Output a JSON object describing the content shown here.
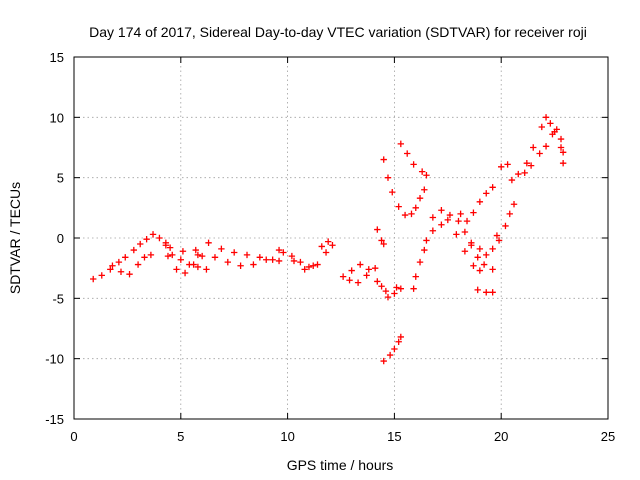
{
  "chart_data": {
    "type": "scatter",
    "title": "Day 174 of 2017, Sidereal Day-to-day VTEC variation (SDTVAR) for receiver roji",
    "xlabel": "GPS time / hours",
    "ylabel": "SDTVAR / TECUs",
    "xlim": [
      0,
      25
    ],
    "ylim": [
      -15,
      15
    ],
    "xticks": [
      "0",
      "5",
      "10",
      "15",
      "20",
      "25"
    ],
    "yticks": [
      "-15",
      "-10",
      "-5",
      "0",
      "5",
      "10",
      "15"
    ],
    "grid": true,
    "marker": "plus",
    "color": "#ff0000",
    "segments": [
      {
        "points": [
          [
            0.9,
            -3.4
          ],
          [
            1.3,
            -3.1
          ],
          [
            1.7,
            -2.6
          ],
          [
            2.1,
            -2.0
          ],
          [
            2.4,
            -1.6
          ],
          [
            2.8,
            -1.0
          ],
          [
            3.1,
            -0.5
          ],
          [
            3.4,
            -0.1
          ],
          [
            3.7,
            0.3
          ],
          [
            4.0,
            0.0
          ],
          [
            4.3,
            -0.6
          ]
        ]
      },
      {
        "points": [
          [
            1.8,
            -2.3
          ],
          [
            2.2,
            -2.8
          ],
          [
            2.6,
            -3.0
          ],
          [
            3.0,
            -2.2
          ],
          [
            3.3,
            -1.6
          ],
          [
            3.6,
            -1.4
          ]
        ]
      },
      {
        "points": [
          [
            4.3,
            -0.4
          ],
          [
            4.6,
            -1.4
          ],
          [
            5.0,
            -1.8
          ],
          [
            5.4,
            -2.2
          ],
          [
            5.8,
            -2.4
          ],
          [
            6.2,
            -2.6
          ]
        ]
      },
      {
        "points": [
          [
            4.4,
            -1.5
          ],
          [
            4.8,
            -2.6
          ],
          [
            5.2,
            -2.9
          ],
          [
            5.6,
            -2.2
          ],
          [
            5.8,
            -1.4
          ]
        ]
      },
      {
        "points": [
          [
            4.5,
            -0.8
          ],
          [
            5.1,
            -1.1
          ],
          [
            5.7,
            -1.0
          ],
          [
            6.3,
            -0.4
          ],
          [
            6.9,
            -0.9
          ],
          [
            7.5,
            -1.2
          ],
          [
            8.1,
            -1.4
          ],
          [
            8.7,
            -1.6
          ],
          [
            9.3,
            -1.8
          ],
          [
            9.6,
            -1.9
          ]
        ]
      },
      {
        "points": [
          [
            6.0,
            -1.5
          ],
          [
            6.6,
            -1.6
          ],
          [
            7.2,
            -2.0
          ],
          [
            7.8,
            -2.3
          ],
          [
            8.4,
            -2.2
          ],
          [
            9.0,
            -1.8
          ],
          [
            9.6,
            -1.0
          ]
        ]
      },
      {
        "points": [
          [
            9.8,
            -1.2
          ],
          [
            10.2,
            -1.5
          ],
          [
            10.6,
            -2.0
          ],
          [
            11.0,
            -2.4
          ],
          [
            11.4,
            -2.2
          ],
          [
            11.8,
            -1.2
          ],
          [
            12.1,
            -0.6
          ]
        ]
      },
      {
        "points": [
          [
            10.3,
            -1.9
          ],
          [
            10.8,
            -2.6
          ],
          [
            11.2,
            -2.3
          ],
          [
            11.6,
            -0.7
          ],
          [
            11.9,
            -0.3
          ]
        ]
      },
      {
        "points": [
          [
            12.6,
            -3.2
          ],
          [
            13.0,
            -2.7
          ],
          [
            13.4,
            -2.2
          ],
          [
            13.8,
            -2.6
          ],
          [
            14.2,
            -3.6
          ],
          [
            14.6,
            -4.4
          ],
          [
            15.0,
            -4.6
          ],
          [
            15.3,
            -4.2
          ]
        ]
      },
      {
        "points": [
          [
            12.9,
            -3.5
          ],
          [
            13.3,
            -3.7
          ],
          [
            13.7,
            -3.1
          ],
          [
            14.1,
            -2.5
          ],
          [
            14.4,
            -4.0
          ],
          [
            14.7,
            -4.9
          ],
          [
            15.1,
            -4.1
          ]
        ]
      },
      {
        "points": [
          [
            14.2,
            0.7
          ],
          [
            14.4,
            -0.2
          ],
          [
            14.5,
            -0.5
          ]
        ]
      },
      {
        "points": [
          [
            14.5,
            6.5
          ],
          [
            14.7,
            5.0
          ],
          [
            14.9,
            3.8
          ],
          [
            15.2,
            2.6
          ],
          [
            15.5,
            1.9
          ],
          [
            15.8,
            2.0
          ],
          [
            16.0,
            2.5
          ],
          [
            16.2,
            3.3
          ],
          [
            16.4,
            4.0
          ]
        ]
      },
      {
        "points": [
          [
            15.3,
            7.8
          ],
          [
            15.6,
            7.0
          ],
          [
            15.9,
            6.1
          ],
          [
            16.3,
            5.5
          ],
          [
            16.5,
            5.2
          ]
        ]
      },
      {
        "points": [
          [
            14.5,
            -10.2
          ],
          [
            14.8,
            -9.7
          ],
          [
            15.0,
            -9.2
          ],
          [
            15.2,
            -8.6
          ],
          [
            15.3,
            -8.2
          ]
        ]
      },
      {
        "points": [
          [
            15.9,
            -4.2
          ],
          [
            16.0,
            -3.2
          ],
          [
            16.2,
            -2.0
          ],
          [
            16.4,
            -1.0
          ]
        ]
      },
      {
        "points": [
          [
            16.5,
            -0.2
          ],
          [
            16.8,
            0.6
          ],
          [
            17.2,
            1.1
          ],
          [
            17.6,
            1.9
          ],
          [
            18.0,
            1.4
          ],
          [
            18.3,
            0.5
          ],
          [
            18.6,
            -0.6
          ],
          [
            18.9,
            -1.6
          ],
          [
            19.2,
            -2.2
          ],
          [
            19.6,
            -2.6
          ]
        ]
      },
      {
        "points": [
          [
            16.8,
            1.7
          ],
          [
            17.2,
            2.3
          ],
          [
            17.5,
            1.5
          ],
          [
            17.9,
            0.3
          ],
          [
            18.3,
            -1.1
          ],
          [
            18.7,
            -2.3
          ],
          [
            19.0,
            -2.7
          ]
        ]
      },
      {
        "points": [
          [
            18.1,
            2.0
          ],
          [
            18.4,
            1.4
          ],
          [
            18.7,
            2.1
          ],
          [
            19.0,
            3.0
          ],
          [
            19.3,
            3.7
          ],
          [
            19.6,
            4.2
          ]
        ]
      },
      {
        "points": [
          [
            18.6,
            -0.4
          ],
          [
            19.0,
            -0.9
          ],
          [
            19.3,
            -1.4
          ],
          [
            19.6,
            -0.9
          ],
          [
            19.8,
            0.2
          ]
        ]
      },
      {
        "points": [
          [
            18.9,
            -4.3
          ],
          [
            19.3,
            -4.5
          ],
          [
            19.6,
            -4.5
          ]
        ]
      },
      {
        "points": [
          [
            19.9,
            -0.2
          ],
          [
            20.2,
            1.0
          ],
          [
            20.4,
            2.0
          ],
          [
            20.6,
            2.8
          ]
        ]
      },
      {
        "points": [
          [
            20.0,
            5.9
          ],
          [
            20.3,
            6.1
          ]
        ]
      },
      {
        "points": [
          [
            20.5,
            4.8
          ],
          [
            20.8,
            5.3
          ],
          [
            21.2,
            6.2
          ],
          [
            21.5,
            7.5
          ],
          [
            21.9,
            9.2
          ],
          [
            22.1,
            10.0
          ],
          [
            22.3,
            9.5
          ],
          [
            22.5,
            8.8
          ],
          [
            22.8,
            7.5
          ],
          [
            22.9,
            6.2
          ]
        ]
      },
      {
        "points": [
          [
            21.1,
            5.4
          ],
          [
            21.4,
            6.0
          ],
          [
            21.8,
            7.0
          ],
          [
            22.1,
            7.6
          ],
          [
            22.4,
            8.6
          ],
          [
            22.6,
            9.0
          ],
          [
            22.8,
            8.2
          ],
          [
            22.9,
            7.1
          ]
        ]
      }
    ]
  }
}
